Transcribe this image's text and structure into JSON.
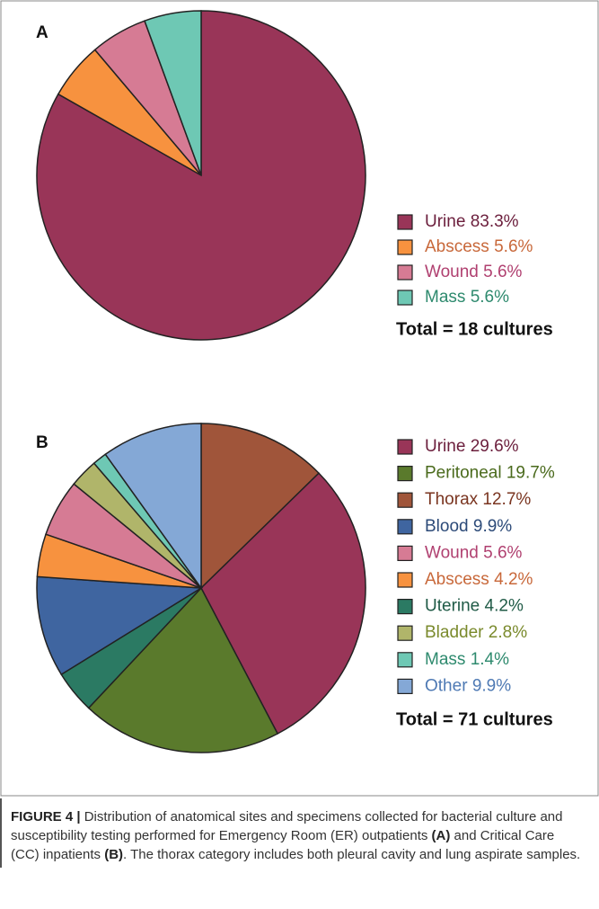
{
  "chart_data": [
    {
      "type": "pie",
      "panel": "A",
      "categories": [
        "Urine",
        "Abscess",
        "Wound",
        "Mass"
      ],
      "values": [
        83.3,
        5.6,
        5.6,
        5.6
      ],
      "value_labels": [
        "83.3%",
        "5.6%",
        "5.6%",
        "5.6%"
      ],
      "colors": [
        "#993558",
        "#f7923f",
        "#d67b94",
        "#6ec8b4"
      ],
      "text_colors": [
        "#6b1e3c",
        "#c8683a",
        "#b04070",
        "#2e8a6e"
      ],
      "slice_order": [
        0,
        1,
        2,
        3
      ],
      "note": "Total = 18 cultures"
    },
    {
      "type": "pie",
      "panel": "B",
      "categories": [
        "Urine",
        "Peritoneal",
        "Thorax",
        "Blood",
        "Wound",
        "Abscess",
        "Uterine",
        "Bladder",
        "Mass",
        "Other"
      ],
      "values": [
        29.6,
        19.7,
        12.7,
        9.9,
        5.6,
        4.2,
        4.2,
        2.8,
        1.4,
        9.9
      ],
      "value_labels": [
        "29.6%",
        "19.7%",
        "12.7%",
        "9.9%",
        "5.6%",
        "4.2%",
        "4.2%",
        "2.8%",
        "1.4%",
        "9.9%"
      ],
      "colors": [
        "#993558",
        "#5a7a2c",
        "#a0553a",
        "#3f65a0",
        "#d67b94",
        "#f7923f",
        "#2b7a63",
        "#b0b56a",
        "#6ec8b4",
        "#84a8d6"
      ],
      "text_colors": [
        "#6b1e3c",
        "#4a6a1c",
        "#7a3520",
        "#2c4a78",
        "#b04070",
        "#c8683a",
        "#1f5a46",
        "#7a8a2c",
        "#2e8a6e",
        "#4f7ab4"
      ],
      "slice_order": [
        2,
        0,
        1,
        6,
        3,
        5,
        4,
        7,
        8,
        9
      ],
      "note": "Total = 71 cultures"
    }
  ],
  "caption": [
    {
      "text": "FIGURE 4 |",
      "bold": true
    },
    {
      "text": " Distribution of anatomical sites and specimens collected for bacterial culture and susceptibility testing performed for Emergency Room (ER) outpatients ",
      "bold": false
    },
    {
      "text": "(A)",
      "bold": true
    },
    {
      "text": " and Critical Care (CC) inpatients ",
      "bold": false
    },
    {
      "text": "(B)",
      "bold": true
    },
    {
      "text": ". The thorax category includes both pleural cavity and lung aspirate samples.",
      "bold": false
    }
  ]
}
